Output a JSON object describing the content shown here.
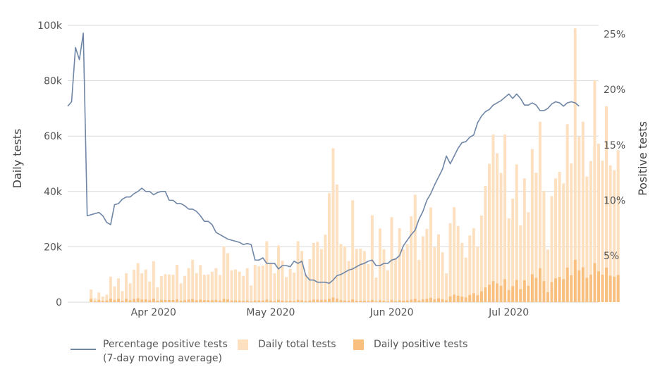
{
  "chart_data": {
    "type": "bar+line",
    "title": "",
    "left_axis": {
      "label": "Daily tests",
      "ticks": [
        "0",
        "20k",
        "40k",
        "60k",
        "80k",
        "100k"
      ],
      "tick_values": [
        0,
        20000,
        40000,
        60000,
        80000,
        100000
      ],
      "ylim": [
        0,
        100000
      ]
    },
    "right_axis": {
      "label": "Positive tests",
      "ticks": [
        "5%",
        "10%",
        "15%",
        "20%",
        "25%"
      ],
      "tick_values": [
        5,
        10,
        15,
        20,
        25
      ],
      "ylim": [
        0.8,
        25.8
      ]
    },
    "x_axis": {
      "start_date": "2020-03-10",
      "end_date": "2020-07-24",
      "ticks": [
        "Apr 2020",
        "May 2020",
        "Jun 2020",
        "Jul 2020"
      ],
      "tick_dates": [
        "2020-04-01",
        "2020-05-01",
        "2020-06-01",
        "2020-07-01"
      ]
    },
    "grid": true,
    "legend_position": "bottom-left",
    "colors": {
      "line": "#6f86a6",
      "total_bar": "#fde0c0",
      "positive_bar": "#f8bf7e",
      "grid": "#d9d9d9"
    },
    "legend": [
      {
        "type": "line",
        "label_line1": "Percentage positive tests",
        "label_line2": "(7-day moving average)"
      },
      {
        "type": "swatch",
        "label": "Daily total tests"
      },
      {
        "type": "swatch",
        "label": "Daily positive tests"
      }
    ],
    "series_total_tests": [
      0,
      0,
      0,
      0,
      0,
      0,
      4600,
      1400,
      3500,
      2000,
      2700,
      9200,
      5700,
      8600,
      4000,
      10400,
      6800,
      11700,
      14100,
      10400,
      11800,
      7500,
      14800,
      5400,
      9400,
      10100,
      10000,
      9900,
      13500,
      6800,
      9500,
      12300,
      15300,
      10500,
      13400,
      9900,
      10000,
      11000,
      12300,
      9800,
      20100,
      17700,
      11500,
      11800,
      11000,
      9500,
      12300,
      6000,
      13500,
      13000,
      13200,
      22000,
      13800,
      10400,
      20500,
      15000,
      9100,
      12000,
      10700,
      22000,
      18500,
      10200,
      15500,
      21400,
      21800,
      19200,
      24400,
      39400,
      55600,
      42500,
      21000,
      20200,
      14900,
      36800,
      19200,
      19300,
      18500,
      13700,
      31400,
      8900,
      26600,
      19100,
      11500,
      30700,
      15900,
      26700,
      19000,
      21000,
      31000,
      38800,
      15300,
      23800,
      26500,
      34200,
      19900,
      24500,
      18000,
      10400,
      28500,
      34300,
      27500,
      21400,
      16100,
      24100,
      26700,
      20000,
      31300,
      42000,
      50000,
      60600,
      53800,
      46700,
      60600,
      30300,
      37400,
      49800,
      27700,
      44700,
      32500,
      55300,
      46800,
      65200,
      40200,
      19000,
      38300,
      44700,
      47100,
      42900,
      64300,
      50100,
      98900,
      59800,
      65200,
      45400,
      51000,
      80200,
      57300,
      51100,
      70800,
      49400,
      47700,
      54900
    ],
    "series_positive_tests": [
      0,
      0,
      0,
      0,
      0,
      0,
      1300,
      300,
      800,
      500,
      600,
      1300,
      800,
      1200,
      500,
      1200,
      700,
      1200,
      1400,
      900,
      1000,
      700,
      1300,
      500,
      800,
      800,
      800,
      800,
      1000,
      500,
      700,
      900,
      1100,
      700,
      900,
      700,
      700,
      700,
      800,
      600,
      1200,
      1000,
      600,
      600,
      600,
      500,
      600,
      300,
      600,
      600,
      600,
      900,
      600,
      400,
      800,
      600,
      400,
      500,
      400,
      800,
      700,
      400,
      600,
      900,
      900,
      800,
      900,
      1200,
      1700,
      1300,
      700,
      600,
      500,
      1000,
      500,
      500,
      500,
      400,
      800,
      300,
      700,
      500,
      300,
      800,
      400,
      700,
      500,
      600,
      900,
      1200,
      600,
      1000,
      1200,
      1600,
      1000,
      1400,
      1100,
      700,
      2100,
      2700,
      2300,
      2000,
      1700,
      2600,
      3200,
      2500,
      3900,
      5300,
      6300,
      7600,
      6800,
      5900,
      8300,
      4400,
      5800,
      8000,
      4700,
      7900,
      5900,
      10100,
      8800,
      12300,
      7600,
      3600,
      7300,
      8600,
      9100,
      8300,
      12500,
      9700,
      15300,
      11500,
      12600,
      8800,
      9900,
      14100,
      11100,
      9900,
      12500,
      9600,
      9200,
      9800
    ],
    "series_percent_positive": [
      18.5,
      18.9,
      23.8,
      22.7,
      25.1,
      8.6,
      8.7,
      8.8,
      8.9,
      8.6,
      8.0,
      7.8,
      9.6,
      9.7,
      10.1,
      10.3,
      10.3,
      10.6,
      10.8,
      11.1,
      10.8,
      10.8,
      10.5,
      10.7,
      10.8,
      10.8,
      10.0,
      10.0,
      9.7,
      9.7,
      9.5,
      9.2,
      9.2,
      9.0,
      8.6,
      8.1,
      8.1,
      7.8,
      7.1,
      6.9,
      6.7,
      6.5,
      6.4,
      6.3,
      6.2,
      6.0,
      6.1,
      6.0,
      4.6,
      4.6,
      4.8,
      4.3,
      4.3,
      4.3,
      3.8,
      4.1,
      4.1,
      4.0,
      4.5,
      4.3,
      4.5,
      3.2,
      2.8,
      2.8,
      2.6,
      2.6,
      2.6,
      2.5,
      2.8,
      3.2,
      3.3,
      3.5,
      3.7,
      3.8,
      4.0,
      4.2,
      4.3,
      4.5,
      4.6,
      4.1,
      4.1,
      4.3,
      4.3,
      4.6,
      4.7,
      5.0,
      5.9,
      6.4,
      6.9,
      7.3,
      8.3,
      9.0,
      10.0,
      10.6,
      11.4,
      12.1,
      12.8,
      14.0,
      13.3,
      14.0,
      14.7,
      15.2,
      15.3,
      15.7,
      15.9,
      17.0,
      17.6,
      18.0,
      18.2,
      18.6,
      18.8,
      19.0,
      19.3,
      19.6,
      19.2,
      19.6,
      19.2,
      18.6,
      18.6,
      18.8,
      18.6,
      18.1,
      18.1,
      18.3,
      18.7,
      18.9,
      18.8,
      18.5,
      18.8,
      18.9,
      18.8,
      18.5
    ]
  }
}
